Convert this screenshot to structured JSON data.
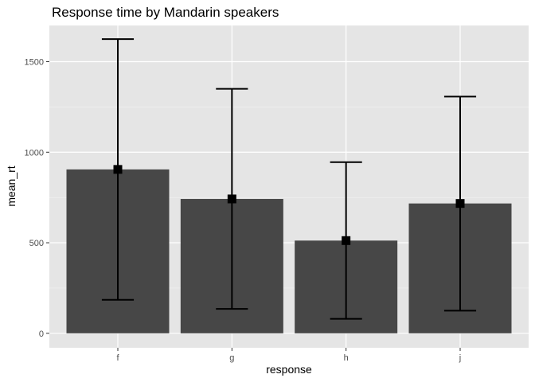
{
  "chart_data": {
    "type": "bar",
    "title": "Response time by Mandarin speakers",
    "xlabel": "response",
    "ylabel": "mean_rt",
    "categories": [
      "f",
      "g",
      "h",
      "j"
    ],
    "values": [
      905,
      742,
      512,
      717
    ],
    "error_low": [
      185,
      135,
      80,
      125
    ],
    "error_high": [
      1625,
      1350,
      945,
      1307
    ],
    "ylim": [
      -80,
      1700
    ],
    "yticks": [
      0,
      500,
      1000,
      1500
    ],
    "ytick_labels": [
      "0",
      "500",
      "1000",
      "1500"
    ],
    "grid": true,
    "legend": "none",
    "colors": {
      "bar": "#474747",
      "panel": "#e5e5e5",
      "grid_major": "#ffffff",
      "grid_minor": "#f2f2f2",
      "errorbar": "#000000",
      "point": "#000000",
      "tick": "#333333"
    }
  }
}
